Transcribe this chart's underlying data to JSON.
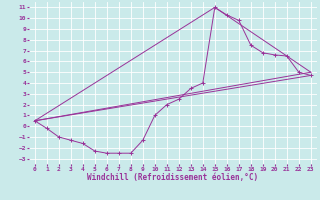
{
  "background_color": "#caeaea",
  "grid_color": "#ffffff",
  "line_color": "#993399",
  "xlabel": "Windchill (Refroidissement éolien,°C)",
  "xlim": [
    -0.5,
    23.5
  ],
  "ylim": [
    -3.5,
    11.5
  ],
  "xticks": [
    0,
    1,
    2,
    3,
    4,
    5,
    6,
    7,
    8,
    9,
    10,
    11,
    12,
    13,
    14,
    15,
    16,
    17,
    18,
    19,
    20,
    21,
    22,
    23
  ],
  "yticks": [
    -3,
    -2,
    -1,
    0,
    1,
    2,
    3,
    4,
    5,
    6,
    7,
    8,
    9,
    10,
    11
  ],
  "line1_x": [
    0,
    1,
    2,
    3,
    4,
    5,
    6,
    7,
    8,
    9,
    10,
    11,
    12,
    13,
    14,
    15,
    16,
    17,
    18,
    19,
    20,
    21,
    22,
    23
  ],
  "line1_y": [
    0.5,
    -0.2,
    -1.0,
    -1.3,
    -1.6,
    -2.3,
    -2.5,
    -2.5,
    -2.5,
    -1.3,
    1.0,
    2.0,
    2.5,
    3.5,
    4.0,
    11.0,
    10.3,
    9.8,
    7.5,
    6.8,
    6.6,
    6.5,
    5.0,
    4.7
  ],
  "line2_x": [
    0,
    23
  ],
  "line2_y": [
    0.5,
    5.0
  ],
  "line3_x": [
    0,
    15,
    23
  ],
  "line3_y": [
    0.5,
    11.0,
    5.0
  ],
  "line4_x": [
    0,
    23
  ],
  "line4_y": [
    0.5,
    4.7
  ],
  "xlabel_fontsize": 5.5,
  "tick_fontsize": 4.5
}
